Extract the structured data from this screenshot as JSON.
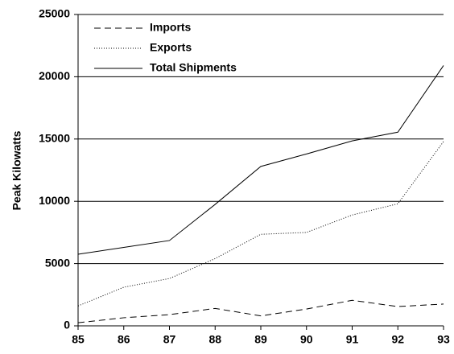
{
  "chart_data": {
    "type": "line",
    "y_label": "Peak Kilowatts",
    "categories": [
      "85",
      "86",
      "87",
      "88",
      "89",
      "90",
      "91",
      "92",
      "93"
    ],
    "series": [
      {
        "name": "Imports",
        "color": "#000000",
        "dash": "dashed",
        "values": [
          250,
          650,
          900,
          1400,
          800,
          1350,
          2050,
          1550,
          1750
        ]
      },
      {
        "name": "Exports",
        "color": "#000000",
        "dash": "dotted",
        "values": [
          1600,
          3100,
          3800,
          5400,
          7350,
          7500,
          8900,
          9800,
          14800
        ]
      },
      {
        "name": "Total Shipments",
        "color": "#000000",
        "dash": "solid",
        "values": [
          5750,
          6300,
          6850,
          9750,
          12800,
          13800,
          14850,
          15550,
          20900
        ]
      }
    ],
    "ylim": [
      0,
      25000
    ],
    "yticks": [
      0,
      5000,
      10000,
      15000,
      20000,
      25000
    ],
    "grid": true,
    "legend": "upper left"
  }
}
